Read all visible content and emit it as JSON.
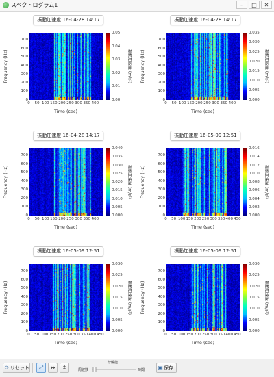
{
  "window": {
    "title": "スペクトログラム1",
    "minimize": "–",
    "maximize": "□",
    "close": "✕"
  },
  "colormap": [
    "#00007f",
    "#0000ff",
    "#0080ff",
    "#00ffff",
    "#80ff80",
    "#ffff00",
    "#ff8000",
    "#ff0000",
    "#7f0000"
  ],
  "panels": [
    {
      "title": "振動加速度 16-04-28 14:17",
      "xlabel": "Time (sec)",
      "ylabel": "Frequency (Hz)",
      "cblabel": "振動加速度 (m/s²)",
      "xticks": [
        "0",
        "50",
        "100",
        "150",
        "200",
        "250",
        "300",
        "350",
        "400"
      ],
      "yticks": [
        "0",
        "100",
        "200",
        "300",
        "400",
        "500",
        "600",
        "700"
      ],
      "cbticks": [
        "0.00",
        "0.01",
        "0.02",
        "0.03",
        "0.04",
        "0.05"
      ],
      "chart_data": {
        "type": "heatmap",
        "xlim": [
          0,
          450
        ],
        "ylim": [
          0,
          780
        ],
        "clim": [
          0,
          0.05
        ],
        "active_time": [
          150,
          375
        ]
      }
    },
    {
      "title": "振動加速度 16-04-28 14:17",
      "xlabel": "Time (sec)",
      "ylabel": "Frequency (Hz)",
      "cblabel": "振動加速度 (m/s²)",
      "xticks": [
        "0",
        "50",
        "100",
        "150",
        "200",
        "250",
        "300",
        "350",
        "400"
      ],
      "yticks": [
        "0",
        "100",
        "200",
        "300",
        "400",
        "500",
        "600",
        "700"
      ],
      "cbticks": [
        "0.000",
        "0.005",
        "0.010",
        "0.015",
        "0.020",
        "0.025",
        "0.030",
        "0.035"
      ],
      "chart_data": {
        "type": "heatmap",
        "xlim": [
          0,
          450
        ],
        "ylim": [
          0,
          780
        ],
        "clim": [
          0,
          0.035
        ],
        "active_time": [
          150,
          375
        ]
      }
    },
    {
      "title": "振動加速度 16-04-28 14:17",
      "xlabel": "Time (sec)",
      "ylabel": "Frequency (Hz)",
      "cblabel": "振動加速度 (m/s²)",
      "xticks": [
        "0",
        "50",
        "100",
        "150",
        "200",
        "250",
        "300",
        "350",
        "400"
      ],
      "yticks": [
        "0",
        "100",
        "200",
        "300",
        "400",
        "500",
        "600",
        "700"
      ],
      "cbticks": [
        "0.000",
        "0.005",
        "0.010",
        "0.015",
        "0.020",
        "0.025",
        "0.030",
        "0.035",
        "0.040"
      ],
      "chart_data": {
        "type": "heatmap",
        "xlim": [
          0,
          450
        ],
        "ylim": [
          0,
          780
        ],
        "clim": [
          0,
          0.04
        ],
        "active_time": [
          150,
          375
        ]
      }
    },
    {
      "title": "振動加速度 16-05-09 12:51",
      "xlabel": "Time (sec)",
      "ylabel": "Frequency (Hz)",
      "cblabel": "振動加速度 (m/s²)",
      "xticks": [
        "0",
        "50",
        "100",
        "150",
        "200",
        "250",
        "300",
        "350",
        "400",
        "450"
      ],
      "yticks": [
        "0",
        "100",
        "200",
        "300",
        "400",
        "500",
        "600",
        "700"
      ],
      "cbticks": [
        "0.000",
        "0.002",
        "0.004",
        "0.006",
        "0.008",
        "0.010",
        "0.012",
        "0.014",
        "0.016"
      ],
      "chart_data": {
        "type": "heatmap",
        "xlim": [
          0,
          470
        ],
        "ylim": [
          0,
          780
        ],
        "clim": [
          0,
          0.016
        ],
        "active_time": [
          100,
          380
        ]
      }
    },
    {
      "title": "振動加速度 16-05-09 12:51",
      "xlabel": "Time (sec)",
      "ylabel": "Frequency (Hz)",
      "cblabel": "振動加速度 (m/s²)",
      "xticks": [
        "0",
        "50",
        "100",
        "150",
        "200",
        "250",
        "300",
        "350",
        "400",
        "450"
      ],
      "yticks": [
        "0",
        "100",
        "200",
        "300",
        "400",
        "500",
        "600",
        "700"
      ],
      "cbticks": [
        "0.000",
        "0.005",
        "0.010",
        "0.015",
        "0.020",
        "0.025",
        "0.030"
      ],
      "chart_data": {
        "type": "heatmap",
        "xlim": [
          0,
          470
        ],
        "ylim": [
          0,
          780
        ],
        "clim": [
          0,
          0.03
        ],
        "active_time": [
          150,
          380
        ]
      }
    },
    {
      "title": "振動加速度 16-05-09 12:51",
      "xlabel": "Time (sec)",
      "ylabel": "Frequency (Hz)",
      "cblabel": "振動加速度 (m/s²)",
      "xticks": [
        "0",
        "50",
        "100",
        "150",
        "200",
        "250",
        "300",
        "350",
        "400",
        "450"
      ],
      "yticks": [
        "0",
        "100",
        "200",
        "300",
        "400",
        "500",
        "600",
        "700"
      ],
      "cbticks": [
        "0.000",
        "0.005",
        "0.010",
        "0.015",
        "0.020",
        "0.025",
        "0.030"
      ],
      "chart_data": {
        "type": "heatmap",
        "xlim": [
          0,
          470
        ],
        "ylim": [
          0,
          780
        ],
        "clim": [
          0,
          0.03
        ],
        "active_time": [
          150,
          380
        ]
      }
    }
  ],
  "toolbar": {
    "reset_label": "リセット",
    "slider_caption": "分解能",
    "slider_left": "周波数",
    "slider_right": "時間",
    "slider_value": 0.05,
    "save_label": "保存"
  }
}
